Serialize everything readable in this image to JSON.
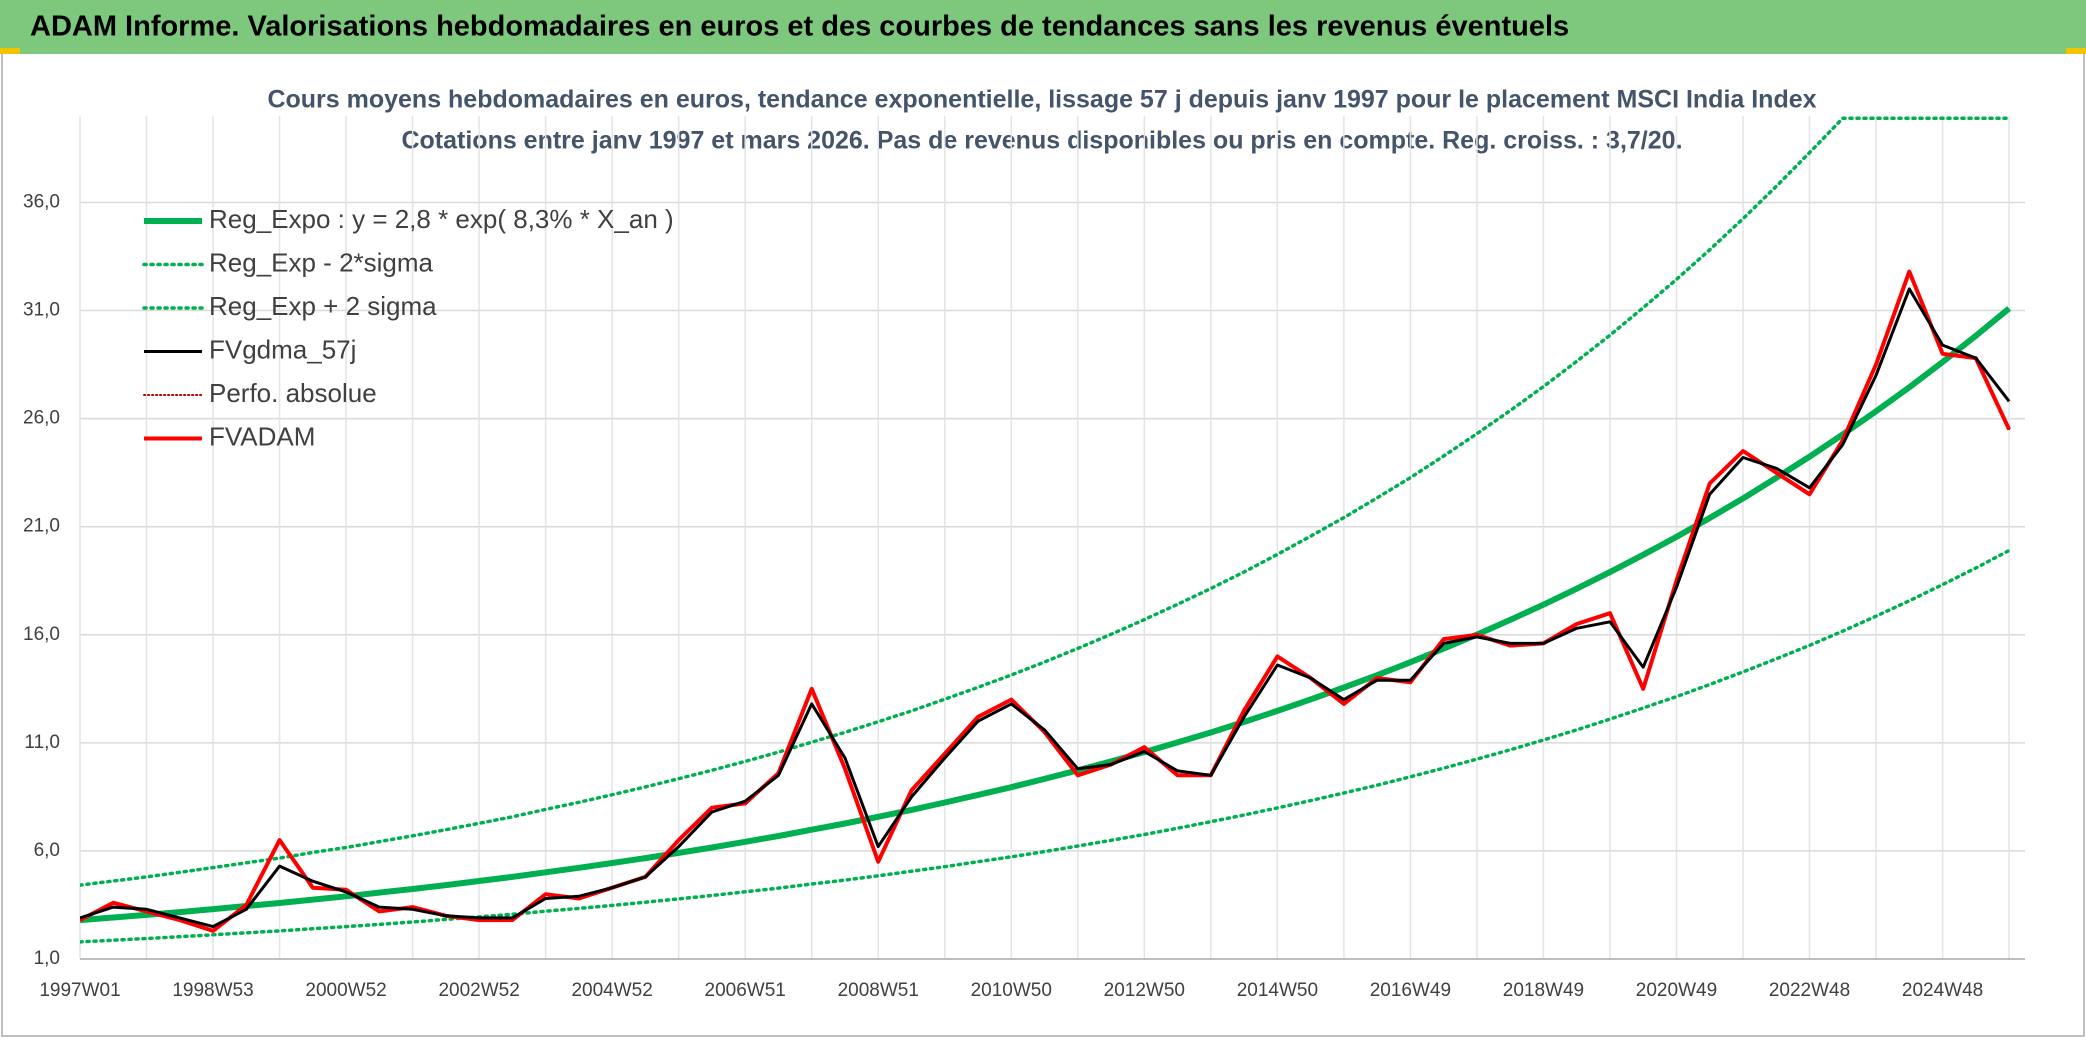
{
  "header": {
    "title": "ADAM Informe. Valorisations hebdomadaires en euros et des courbes de tendances sans les revenus éventuels"
  },
  "chart_data": {
    "type": "line",
    "title": "Cours moyens hebdomadaires en euros, tendance exponentielle, lissage 57 j depuis janv 1997 pour le placement MSCI India Index",
    "subtitle": "Cotations entre janv 1997 et mars 2026. Pas de revenus disponibles ou pris en compte. Reg. croiss. : 3,7/20.",
    "categories": [
      "1997W01",
      null,
      null,
      null,
      "1998W53",
      null,
      null,
      null,
      "2000W52",
      null,
      null,
      null,
      "2002W52",
      null,
      null,
      null,
      "2004W52",
      null,
      null,
      null,
      "2006W51",
      null,
      null,
      null,
      "2008W51",
      null,
      null,
      null,
      "2010W50",
      null,
      null,
      null,
      "2012W50",
      null,
      null,
      null,
      "2014W50",
      null,
      null,
      null,
      "2016W49",
      null,
      null,
      null,
      "2018W49",
      null,
      null,
      null,
      "2020W49",
      null,
      null,
      null,
      "2022W48",
      null,
      null,
      null,
      "2024W48",
      null,
      null
    ],
    "ylim": [
      1,
      40
    ],
    "yticks": [
      {
        "value": 1,
        "label": "1,0"
      },
      {
        "value": 6,
        "label": "6,0"
      },
      {
        "value": 11,
        "label": "11,0"
      },
      {
        "value": 16,
        "label": "16,0"
      },
      {
        "value": 21,
        "label": "21,0"
      },
      {
        "value": 26,
        "label": "26,0"
      },
      {
        "value": 31,
        "label": "31,0"
      },
      {
        "value": 36,
        "label": "36,0"
      }
    ],
    "grid": true,
    "legend": "upper left",
    "series": [
      {
        "name": "Reg_Expo : y = 2,8 * exp( 8,3% *  X_an )",
        "color": "#00b050",
        "dash": "solid",
        "width": 6,
        "values": [
          2.8,
          2.92,
          3.04,
          3.17,
          3.31,
          3.45,
          3.59,
          3.75,
          3.9,
          4.07,
          4.24,
          4.42,
          4.61,
          4.8,
          5.01,
          5.22,
          5.44,
          5.67,
          5.91,
          6.16,
          6.42,
          6.69,
          6.98,
          7.27,
          7.58,
          7.9,
          8.24,
          8.59,
          8.95,
          9.33,
          9.73,
          10.14,
          10.57,
          11.02,
          11.48,
          11.97,
          12.48,
          13.01,
          13.56,
          14.13,
          14.73,
          15.36,
          16.01,
          16.69,
          17.39,
          18.13,
          18.9,
          19.7,
          20.53,
          21.4,
          22.31,
          23.26,
          24.24,
          25.27,
          26.34,
          27.45,
          28.62,
          29.83,
          31.1
        ]
      },
      {
        "name": "Reg_Exp - 2*sigma",
        "color": "#00b050",
        "dash": "dotted",
        "width": 3.5,
        "values": [
          1.79,
          1.87,
          1.95,
          2.03,
          2.12,
          2.21,
          2.3,
          2.4,
          2.5,
          2.6,
          2.71,
          2.83,
          2.95,
          3.07,
          3.21,
          3.34,
          3.48,
          3.63,
          3.78,
          3.94,
          4.11,
          4.28,
          4.47,
          4.65,
          4.85,
          5.06,
          5.27,
          5.5,
          5.73,
          5.97,
          6.23,
          6.49,
          6.76,
          7.05,
          7.35,
          7.66,
          7.99,
          8.33,
          8.68,
          9.04,
          9.43,
          9.83,
          10.25,
          10.68,
          11.13,
          11.6,
          12.1,
          12.61,
          13.14,
          13.7,
          14.28,
          14.89,
          15.51,
          16.17,
          16.86,
          17.57,
          18.32,
          19.09,
          19.9
        ]
      },
      {
        "name": "Reg_Exp + 2 sigma",
        "color": "#00b050",
        "dash": "dotted",
        "width": 3.5,
        "values": [
          4.42,
          4.61,
          4.8,
          5.01,
          5.23,
          5.45,
          5.67,
          5.93,
          6.16,
          6.43,
          6.7,
          6.98,
          7.28,
          7.58,
          7.92,
          8.25,
          8.6,
          8.96,
          9.34,
          9.73,
          10.14,
          10.57,
          11.03,
          11.49,
          11.98,
          12.48,
          13.02,
          13.57,
          14.14,
          14.74,
          15.37,
          16.02,
          16.7,
          17.41,
          18.14,
          18.91,
          19.72,
          20.56,
          21.42,
          22.33,
          23.27,
          24.27,
          25.3,
          26.37,
          27.48,
          28.65,
          29.86,
          31.13,
          32.44,
          33.81,
          35.25,
          36.75,
          38.3,
          39.9,
          39.9,
          39.9,
          39.9,
          39.9,
          39.9
        ]
      },
      {
        "name": "FVgdma_57j",
        "color": "#000000",
        "dash": "solid",
        "width": 3,
        "values": [
          2.9,
          3.4,
          3.3,
          2.9,
          2.5,
          3.3,
          5.3,
          4.6,
          4.1,
          3.4,
          3.3,
          3.0,
          2.9,
          2.9,
          3.8,
          3.9,
          4.3,
          4.8,
          6.2,
          7.8,
          8.3,
          9.5,
          12.8,
          10.3,
          6.2,
          8.5,
          10.3,
          12.0,
          12.8,
          11.6,
          9.8,
          10.0,
          10.6,
          9.7,
          9.5,
          12.2,
          14.6,
          14.0,
          13.0,
          13.9,
          13.9,
          15.6,
          15.9,
          15.6,
          15.6,
          16.3,
          16.6,
          14.5,
          18.2,
          22.5,
          24.2,
          23.7,
          22.8,
          24.8,
          28.0,
          32.0,
          29.4,
          28.8,
          26.8
        ]
      },
      {
        "name": "Perfo. absolue",
        "color": "#c00000",
        "dash": "dotted",
        "width": 2,
        "values": [
          2.8,
          3.6,
          3.2,
          2.8,
          2.3,
          3.5,
          6.5,
          4.3,
          4.2,
          3.2,
          3.4,
          3.0,
          2.8,
          2.8,
          4.0,
          3.8,
          4.3,
          4.8,
          6.5,
          8.0,
          8.2,
          9.6,
          13.5,
          9.8,
          5.5,
          8.8,
          10.5,
          12.2,
          13.0,
          11.5,
          9.5,
          10.0,
          10.8,
          9.5,
          9.5,
          12.5,
          15.0,
          14.0,
          12.8,
          14.0,
          13.8,
          15.8,
          16.0,
          15.5,
          15.6,
          16.5,
          17.0,
          13.5,
          18.5,
          23.0,
          24.5,
          23.5,
          22.5,
          25.0,
          28.5,
          32.8,
          29.0,
          28.8,
          25.5
        ]
      },
      {
        "name": "FVADAM",
        "color": "#ff0000",
        "dash": "solid",
        "width": 4,
        "values": [
          2.8,
          3.6,
          3.2,
          2.8,
          2.3,
          3.5,
          6.5,
          4.3,
          4.2,
          3.2,
          3.4,
          3.0,
          2.8,
          2.8,
          4.0,
          3.8,
          4.3,
          4.8,
          6.5,
          8.0,
          8.2,
          9.6,
          13.5,
          9.8,
          5.5,
          8.8,
          10.5,
          12.2,
          13.0,
          11.5,
          9.5,
          10.0,
          10.8,
          9.5,
          9.5,
          12.5,
          15.0,
          14.0,
          12.8,
          14.0,
          13.8,
          15.8,
          16.0,
          15.5,
          15.6,
          16.5,
          17.0,
          13.5,
          18.5,
          23.0,
          24.5,
          23.5,
          22.5,
          25.0,
          28.5,
          32.8,
          29.0,
          28.8,
          25.5
        ]
      }
    ]
  }
}
